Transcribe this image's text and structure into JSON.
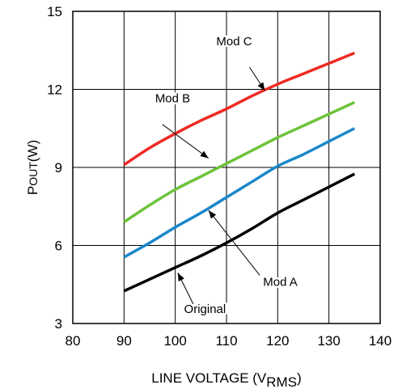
{
  "chart_data": {
    "type": "line",
    "xlabel": {
      "main": "LINE VOLTAGE (V",
      "sub": "RMS",
      "close": ")"
    },
    "ylabel": {
      "main": "P",
      "sub": "OUT",
      "unit": "(W)"
    },
    "xlim": [
      80,
      140
    ],
    "ylim": [
      3,
      15
    ],
    "xticks": [
      80,
      90,
      100,
      110,
      120,
      130,
      140
    ],
    "yticks": [
      3,
      6,
      9,
      12,
      15
    ],
    "grid": true,
    "series": [
      {
        "name": "Original",
        "color": "#000000",
        "points": [
          [
            90,
            4.25
          ],
          [
            95,
            4.7
          ],
          [
            100,
            5.15
          ],
          [
            105,
            5.6
          ],
          [
            110,
            6.1
          ],
          [
            115,
            6.65
          ],
          [
            120,
            7.25
          ],
          [
            125,
            7.75
          ],
          [
            130,
            8.25
          ],
          [
            135,
            8.75
          ]
        ]
      },
      {
        "name": "Mod A",
        "color": "#1a87c9",
        "points": [
          [
            90,
            5.55
          ],
          [
            95,
            6.1
          ],
          [
            100,
            6.7
          ],
          [
            105,
            7.25
          ],
          [
            110,
            7.85
          ],
          [
            115,
            8.45
          ],
          [
            120,
            9.05
          ],
          [
            125,
            9.5
          ],
          [
            130,
            10.0
          ],
          [
            135,
            10.5
          ]
        ]
      },
      {
        "name": "Mod B",
        "color": "#6cc33a",
        "points": [
          [
            90,
            6.9
          ],
          [
            95,
            7.55
          ],
          [
            100,
            8.15
          ],
          [
            105,
            8.65
          ],
          [
            110,
            9.15
          ],
          [
            115,
            9.65
          ],
          [
            120,
            10.15
          ],
          [
            125,
            10.6
          ],
          [
            130,
            11.05
          ],
          [
            135,
            11.5
          ]
        ]
      },
      {
        "name": "Mod C",
        "color": "#ee2a24",
        "points": [
          [
            90,
            9.1
          ],
          [
            95,
            9.75
          ],
          [
            100,
            10.3
          ],
          [
            105,
            10.8
          ],
          [
            110,
            11.25
          ],
          [
            115,
            11.75
          ],
          [
            120,
            12.2
          ],
          [
            125,
            12.6
          ],
          [
            130,
            13.0
          ],
          [
            135,
            13.4
          ]
        ]
      }
    ],
    "annotations": [
      {
        "text": "Mod C",
        "series": "Mod C",
        "label_xy": [
          111.5,
          13.7
        ],
        "tail": [
          114.5,
          12.85
        ],
        "tip": [
          117.5,
          11.95
        ]
      },
      {
        "text": "Mod B",
        "series": "Mod B",
        "label_xy": [
          99.5,
          11.5
        ],
        "tail": [
          97.5,
          10.65
        ],
        "tip": [
          106.5,
          9.35
        ]
      },
      {
        "text": "Mod A",
        "series": "Mod A",
        "label_xy": [
          120.5,
          4.45
        ],
        "tail": [
          116.5,
          4.85
        ],
        "tip": [
          106.5,
          7.35
        ]
      },
      {
        "text": "Original",
        "series": "Original",
        "label_xy": [
          105.8,
          3.4
        ],
        "tail": [
          103.5,
          3.75
        ],
        "tip": [
          100.5,
          4.95
        ]
      }
    ]
  }
}
